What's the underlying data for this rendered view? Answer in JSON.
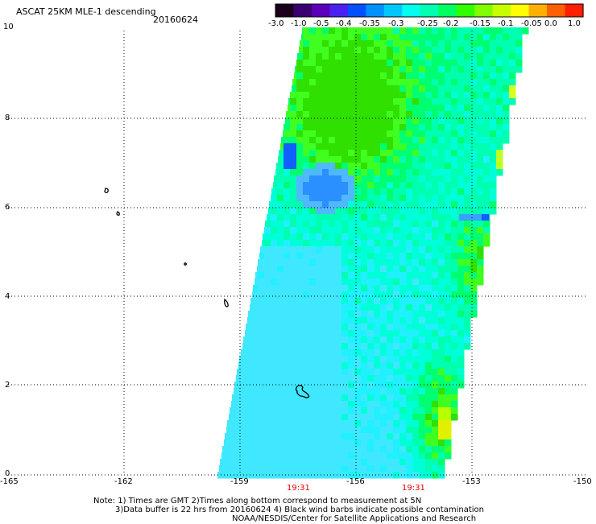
{
  "header": {
    "title": "ASCAT 25KM MLE-1 descending",
    "date": "20160624"
  },
  "colorbar": {
    "tick_labels": [
      "-3.0",
      "-1.0",
      "-0.5",
      "-0.4",
      "-0.35",
      "-0.3",
      "-0.25",
      "-0.2",
      "-0.15",
      "-0.1",
      "-0.05",
      "0.0",
      "1.0"
    ],
    "colors": [
      "#1a0019",
      "#3a0070",
      "#5a00b8",
      "#4a20f0",
      "#0050ff",
      "#0090ff",
      "#00c8ff",
      "#00ffee",
      "#00ffb0",
      "#00ff60",
      "#30ff00",
      "#80ff00",
      "#c8ff00",
      "#ffff00",
      "#ffb000",
      "#ff6000",
      "#ff2000"
    ]
  },
  "axes": {
    "y_ticks": [
      "0",
      "2",
      "4",
      "6",
      "8",
      "10"
    ],
    "x_ticks": [
      "-165",
      "-162",
      "-159",
      "-156",
      "-153",
      "-150"
    ]
  },
  "time_labels": [
    "19:31",
    "19:31"
  ],
  "time_label_color": "#e00000",
  "notes": {
    "line1": "Note: 1) Times are GMT 2)Times along bottom correspond to measurement at 5N",
    "line2": "3)Data buffer is 22 hrs from 20160624 4) Black wind barbs indicate possible contamination",
    "line3": "NOAA/NESDIS/Center for Satellite Applications and Research"
  }
}
